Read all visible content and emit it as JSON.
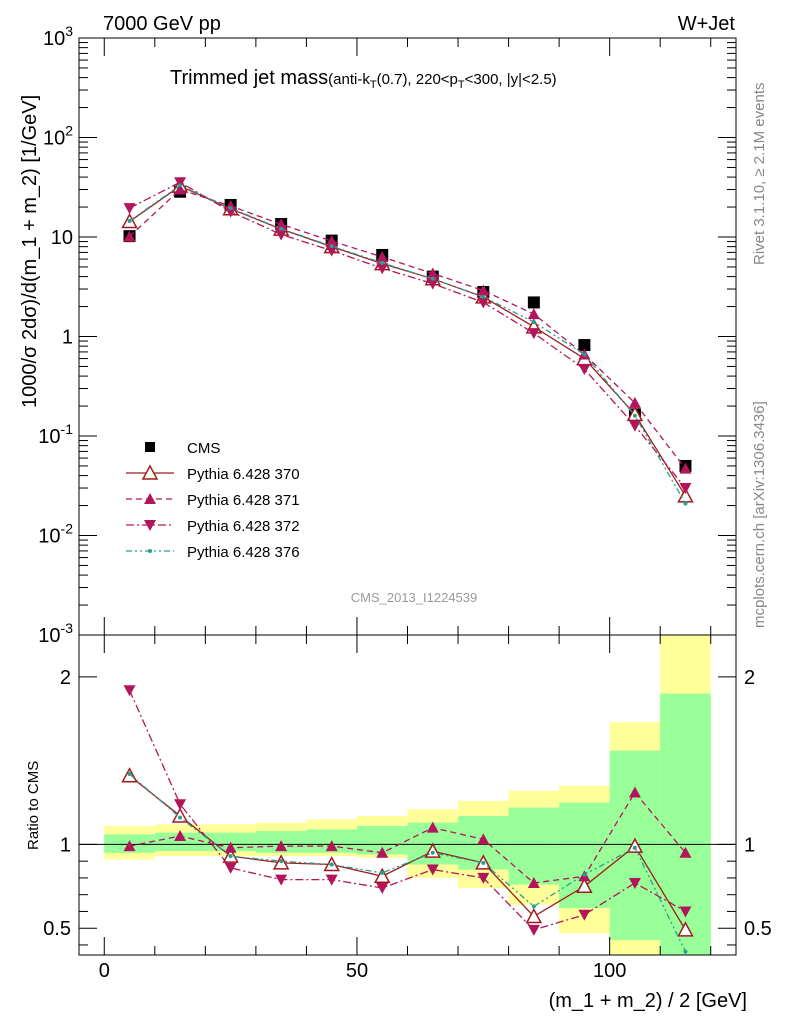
{
  "header": {
    "left": "7000 GeV pp",
    "right": "W+Jet"
  },
  "side_labels": {
    "rivet": "Rivet 3.1.10, ≥ 2.1M events",
    "mcplots": "mcplots.cern.ch [arXiv:1306.3436]"
  },
  "chart_data": [
    {
      "type": "line",
      "title": "Trimmed jet mass",
      "subtitle": "(anti-k_T(0.7), 220<p_T<300, |y|<2.5)",
      "watermark": "CMS_2013_I1224539",
      "ylabel": "1000/σ 2dσ)/d(m_1 + m_2) [1/GeV]",
      "yscale": "log",
      "ylim": [
        0.001,
        1000
      ],
      "xlim": [
        -5,
        125
      ],
      "ytick_labels": [
        "10^-3",
        "10^-2",
        "10^-1",
        "1",
        "10",
        "10^2",
        "10^3"
      ],
      "legend_position": "bottom-left",
      "x": [
        5,
        15,
        25,
        35,
        45,
        55,
        65,
        75,
        85,
        95,
        105,
        115
      ],
      "series": [
        {
          "name": "CMS",
          "color": "#000000",
          "marker": "square",
          "line": "none",
          "values": [
            10.2,
            28.5,
            21.0,
            13.5,
            9.2,
            6.6,
            4.0,
            2.8,
            2.2,
            0.82,
            0.165,
            0.05
          ]
        },
        {
          "name": "Pythia 6.428 370",
          "color": "#a01c1c",
          "marker": "open-triangle-up",
          "line": "solid",
          "values": [
            14.3,
            32.5,
            19.2,
            12.0,
            8.0,
            5.4,
            3.8,
            2.5,
            1.25,
            0.6,
            0.165,
            0.025
          ]
        },
        {
          "name": "Pythia 6.428 371",
          "color": "#b3155a",
          "marker": "triangle-up",
          "line": "dashed",
          "values": [
            10.1,
            30.0,
            20.5,
            13.4,
            9.1,
            6.3,
            4.3,
            2.9,
            1.68,
            0.66,
            0.215,
            0.047
          ]
        },
        {
          "name": "Pythia 6.428 372",
          "color": "#b3155a",
          "marker": "triangle-down",
          "line": "dashdot",
          "values": [
            19.5,
            35.5,
            18.0,
            10.6,
            7.3,
            4.85,
            3.4,
            2.2,
            1.08,
            0.47,
            0.127,
            0.03
          ]
        },
        {
          "name": "Pythia 6.428 376",
          "color": "#2a9d8f",
          "marker": "dot",
          "line": "dashdotdot",
          "values": [
            14.5,
            33.0,
            19.5,
            12.1,
            8.1,
            5.5,
            3.8,
            2.5,
            1.4,
            0.66,
            0.16,
            0.021
          ]
        }
      ]
    },
    {
      "type": "line",
      "ylabel": "Ratio to CMS",
      "xlabel": "(m_1 + m_2) / 2 [GeV]",
      "ylim": [
        0.34,
        2.25
      ],
      "xlim": [
        -5,
        125
      ],
      "yticks": [
        0.5,
        1,
        2
      ],
      "ytick_labels": [
        "0.5",
        "1",
        "2"
      ],
      "xticks": [
        0,
        50,
        100
      ],
      "xtick_labels": [
        "0",
        "50",
        "100"
      ],
      "band_edges": [
        0,
        10,
        20,
        30,
        40,
        50,
        60,
        70,
        80,
        90,
        100,
        110,
        120
      ],
      "band_yellow": [
        [
          0.91,
          1.11
        ],
        [
          0.93,
          1.12
        ],
        [
          0.93,
          1.12
        ],
        [
          0.93,
          1.13
        ],
        [
          0.93,
          1.15
        ],
        [
          0.92,
          1.17
        ],
        [
          0.8,
          1.21
        ],
        [
          0.74,
          1.26
        ],
        [
          0.64,
          1.32
        ],
        [
          0.47,
          1.35
        ],
        [
          0.31,
          1.73
        ],
        [
          0.1,
          2.35
        ]
      ],
      "band_green": [
        [
          0.95,
          1.06
        ],
        [
          0.96,
          1.07
        ],
        [
          0.96,
          1.07
        ],
        [
          0.95,
          1.08
        ],
        [
          0.95,
          1.09
        ],
        [
          0.94,
          1.11
        ],
        [
          0.88,
          1.13
        ],
        [
          0.85,
          1.17
        ],
        [
          0.76,
          1.22
        ],
        [
          0.62,
          1.25
        ],
        [
          0.43,
          1.56
        ],
        [
          0.2,
          1.9
        ]
      ],
      "series": [
        {
          "name": "Pythia 6.428 370",
          "values": [
            1.41,
            1.17,
            0.93,
            0.89,
            0.88,
            0.81,
            0.96,
            0.89,
            0.57,
            0.75,
            0.99,
            0.49
          ]
        },
        {
          "name": "Pythia 6.428 371",
          "values": [
            0.99,
            1.05,
            0.98,
            0.99,
            0.99,
            0.95,
            1.1,
            1.03,
            0.77,
            0.81,
            1.31,
            0.95
          ]
        },
        {
          "name": "Pythia 6.428 372",
          "values": [
            1.92,
            1.24,
            0.86,
            0.79,
            0.79,
            0.74,
            0.85,
            0.8,
            0.49,
            0.58,
            0.77,
            0.6
          ]
        },
        {
          "name": "Pythia 6.428 376",
          "values": [
            1.42,
            1.16,
            0.93,
            0.9,
            0.88,
            0.83,
            0.95,
            0.89,
            0.63,
            0.82,
            0.98,
            0.36
          ]
        }
      ]
    }
  ]
}
